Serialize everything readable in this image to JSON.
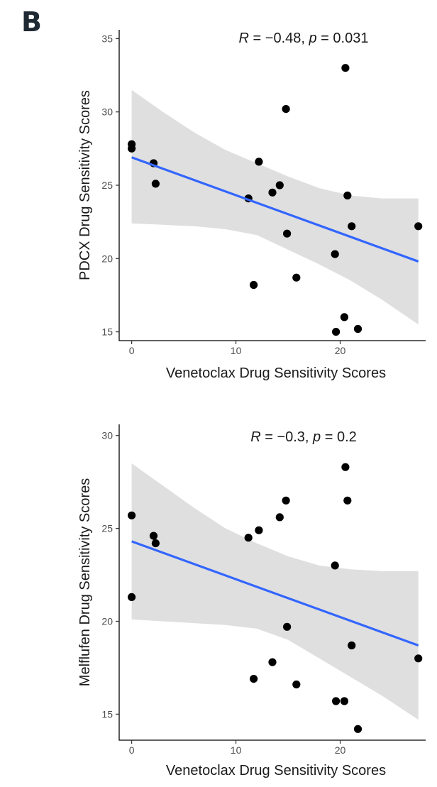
{
  "panel_label": "B",
  "chart_data": [
    {
      "type": "scatter",
      "title": "",
      "xlabel": "Venetoclax Drug Sensitivity Scores",
      "ylabel": "PDCX Drug Sensitivity Scores",
      "xlim": [
        -1.2,
        28.2
      ],
      "ylim": [
        14.4,
        35.6
      ],
      "x_ticks": [
        0,
        10,
        20
      ],
      "y_ticks": [
        15,
        20,
        25,
        30,
        35
      ],
      "annotation": {
        "r_symbol": "R",
        "r_text": " = −0.48, ",
        "p_symbol": "p",
        "p_text": " = 0.031"
      },
      "points": [
        {
          "x": 0,
          "y": 27.8
        },
        {
          "x": 0,
          "y": 27.5
        },
        {
          "x": 2.1,
          "y": 26.5
        },
        {
          "x": 2.3,
          "y": 25.1
        },
        {
          "x": 11.2,
          "y": 24.1
        },
        {
          "x": 12.2,
          "y": 26.6
        },
        {
          "x": 13.5,
          "y": 24.5
        },
        {
          "x": 14.2,
          "y": 25.0
        },
        {
          "x": 14.8,
          "y": 30.2
        },
        {
          "x": 14.9,
          "y": 21.7
        },
        {
          "x": 11.7,
          "y": 18.2
        },
        {
          "x": 15.8,
          "y": 18.7
        },
        {
          "x": 19.5,
          "y": 20.3
        },
        {
          "x": 19.6,
          "y": 15.0
        },
        {
          "x": 20.4,
          "y": 16.0
        },
        {
          "x": 20.5,
          "y": 33.0
        },
        {
          "x": 20.7,
          "y": 24.3
        },
        {
          "x": 21.1,
          "y": 22.2
        },
        {
          "x": 21.7,
          "y": 15.2
        },
        {
          "x": 27.5,
          "y": 22.2
        }
      ],
      "fit_line": {
        "x": [
          0,
          27.5
        ],
        "y": [
          26.9,
          19.8
        ]
      },
      "confidence_band": {
        "x": [
          0,
          3,
          6,
          9,
          12,
          15,
          18,
          21,
          24,
          27.5
        ],
        "upper": [
          31.5,
          30.0,
          28.6,
          27.4,
          26.5,
          25.6,
          24.8,
          24.3,
          24.1,
          24.1
        ],
        "lower": [
          22.4,
          22.3,
          22.2,
          22.0,
          21.6,
          20.6,
          19.6,
          18.5,
          17.2,
          15.5
        ]
      },
      "colors": {
        "points": "#000000",
        "fit_line": "#3366ff",
        "band": "#d9d9d9"
      },
      "grid": false
    },
    {
      "type": "scatter",
      "title": "",
      "xlabel": "Venetoclax Drug Sensitivity Scores",
      "ylabel": "Melflufen Drug Sensitivity Scores",
      "xlim": [
        -1.2,
        28.2
      ],
      "ylim": [
        13.6,
        30.6
      ],
      "x_ticks": [
        0,
        10,
        20
      ],
      "y_ticks": [
        15,
        20,
        25,
        30
      ],
      "annotation": {
        "r_symbol": "R",
        "r_text": " = −0.3, ",
        "p_symbol": "p",
        "p_text": " = 0.2"
      },
      "points": [
        {
          "x": 0,
          "y": 25.7
        },
        {
          "x": 0,
          "y": 21.3
        },
        {
          "x": 2.1,
          "y": 24.6
        },
        {
          "x": 2.3,
          "y": 24.2
        },
        {
          "x": 11.2,
          "y": 24.5
        },
        {
          "x": 12.2,
          "y": 24.9
        },
        {
          "x": 14.2,
          "y": 25.6
        },
        {
          "x": 14.8,
          "y": 26.5
        },
        {
          "x": 14.9,
          "y": 19.7
        },
        {
          "x": 11.7,
          "y": 16.9
        },
        {
          "x": 13.5,
          "y": 17.8
        },
        {
          "x": 15.8,
          "y": 16.6
        },
        {
          "x": 19.5,
          "y": 23.0
        },
        {
          "x": 19.6,
          "y": 15.7
        },
        {
          "x": 20.4,
          "y": 15.7
        },
        {
          "x": 20.5,
          "y": 28.3
        },
        {
          "x": 20.7,
          "y": 26.5
        },
        {
          "x": 21.1,
          "y": 18.7
        },
        {
          "x": 21.7,
          "y": 14.2
        },
        {
          "x": 27.5,
          "y": 18.0
        }
      ],
      "fit_line": {
        "x": [
          0,
          27.5
        ],
        "y": [
          24.3,
          18.7
        ]
      },
      "confidence_band": {
        "x": [
          0,
          3,
          6,
          9,
          12,
          15,
          18,
          21,
          24,
          27.5
        ],
        "upper": [
          28.5,
          27.3,
          26.1,
          25.0,
          24.2,
          23.5,
          23.0,
          22.8,
          22.7,
          22.7
        ],
        "lower": [
          20.1,
          20.0,
          19.9,
          19.8,
          19.6,
          19.0,
          18.0,
          17.0,
          16.0,
          14.7
        ]
      },
      "colors": {
        "points": "#000000",
        "fit_line": "#3366ff",
        "band": "#d9d9d9"
      },
      "grid": false
    }
  ]
}
